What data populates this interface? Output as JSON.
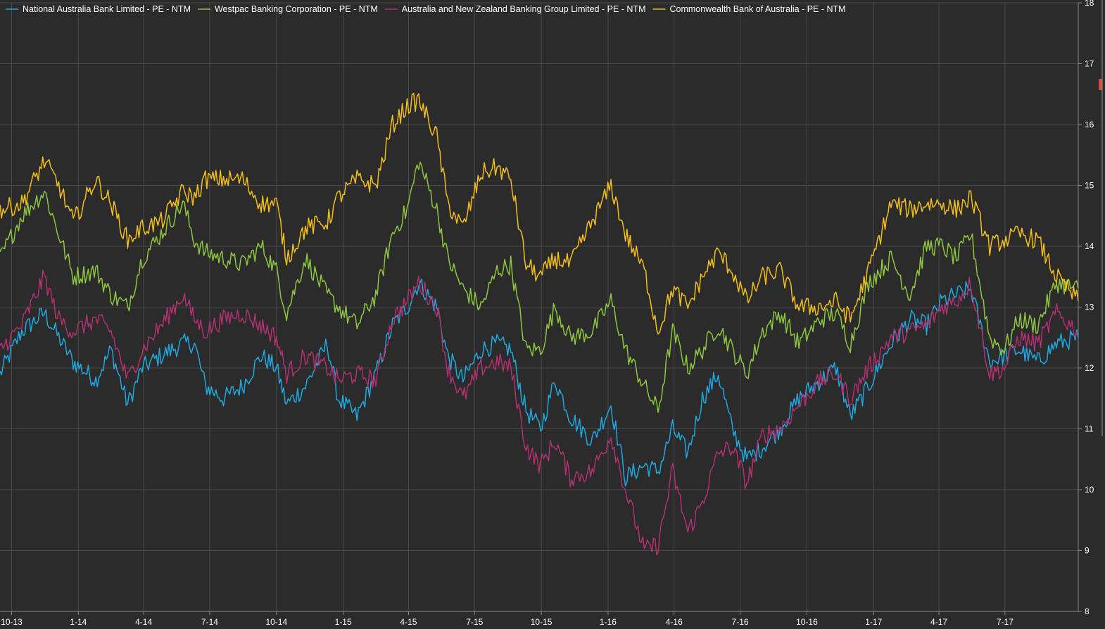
{
  "chart_data": {
    "type": "line",
    "title": "",
    "xlabel": "",
    "ylabel": "",
    "ylim": [
      8,
      18
    ],
    "xlim": [
      "2013-09-15",
      "2017-10-10"
    ],
    "grid": true,
    "legend_position": "top-left",
    "y_axis_side": "right",
    "x_tick_labels": [
      "10-13",
      "1-14",
      "4-14",
      "7-14",
      "10-14",
      "1-15",
      "4-15",
      "7-15",
      "10-15",
      "1-16",
      "4-16",
      "7-16",
      "10-16",
      "1-17",
      "4-17",
      "7-17"
    ],
    "y_tick_labels": [
      "8",
      "9",
      "10",
      "11",
      "12",
      "13",
      "14",
      "15",
      "16",
      "17",
      "18"
    ],
    "series": [
      {
        "name": "National Australia Bank Limited - PE - NTM",
        "color": "#1fa8e0",
        "points": [
          [
            "2013-09-15",
            11.9
          ],
          [
            "2013-10-15",
            12.6
          ],
          [
            "2013-11-15",
            12.9
          ],
          [
            "2013-12-05",
            12.5
          ],
          [
            "2013-12-25",
            12.1
          ],
          [
            "2014-01-25",
            11.8
          ],
          [
            "2014-02-15",
            12.3
          ],
          [
            "2014-03-10",
            11.4
          ],
          [
            "2014-03-30",
            12.0
          ],
          [
            "2014-04-25",
            12.2
          ],
          [
            "2014-05-25",
            12.4
          ],
          [
            "2014-06-10",
            12.4
          ],
          [
            "2014-06-25",
            11.7
          ],
          [
            "2014-07-20",
            11.5
          ],
          [
            "2014-08-15",
            11.7
          ],
          [
            "2014-09-10",
            12.2
          ],
          [
            "2014-10-01",
            12.0
          ],
          [
            "2014-10-15",
            11.4
          ],
          [
            "2014-11-10",
            11.7
          ],
          [
            "2014-12-10",
            12.4
          ],
          [
            "2014-12-25",
            11.5
          ],
          [
            "2015-01-20",
            11.2
          ],
          [
            "2015-02-15",
            11.9
          ],
          [
            "2015-03-10",
            12.7
          ],
          [
            "2015-03-30",
            13.0
          ],
          [
            "2015-04-15",
            13.4
          ],
          [
            "2015-05-10",
            13.0
          ],
          [
            "2015-05-25",
            12.2
          ],
          [
            "2015-06-15",
            11.8
          ],
          [
            "2015-07-10",
            12.3
          ],
          [
            "2015-08-01",
            12.4
          ],
          [
            "2015-08-20",
            12.3
          ],
          [
            "2015-09-10",
            11.3
          ],
          [
            "2015-09-30",
            11.0
          ],
          [
            "2015-10-20",
            11.8
          ],
          [
            "2015-11-10",
            11.2
          ],
          [
            "2015-12-10",
            10.8
          ],
          [
            "2016-01-05",
            11.4
          ],
          [
            "2016-01-25",
            10.2
          ],
          [
            "2016-02-20",
            10.4
          ],
          [
            "2016-03-10",
            10.3
          ],
          [
            "2016-03-30",
            11.0
          ],
          [
            "2016-04-20",
            10.6
          ],
          [
            "2016-05-10",
            11.5
          ],
          [
            "2016-06-01",
            11.9
          ],
          [
            "2016-06-20",
            11.0
          ],
          [
            "2016-07-10",
            10.5
          ],
          [
            "2016-08-01",
            10.7
          ],
          [
            "2016-08-25",
            11.0
          ],
          [
            "2016-09-20",
            11.5
          ],
          [
            "2016-10-20",
            11.8
          ],
          [
            "2016-11-10",
            12.0
          ],
          [
            "2016-11-30",
            11.2
          ],
          [
            "2016-12-25",
            11.7
          ],
          [
            "2017-01-25",
            12.4
          ],
          [
            "2017-02-20",
            12.8
          ],
          [
            "2017-03-15",
            12.7
          ],
          [
            "2017-04-05",
            13.1
          ],
          [
            "2017-04-25",
            13.2
          ],
          [
            "2017-05-15",
            13.3
          ],
          [
            "2017-06-10",
            12.1
          ],
          [
            "2017-06-30",
            12.2
          ],
          [
            "2017-07-20",
            12.3
          ],
          [
            "2017-08-15",
            12.1
          ],
          [
            "2017-09-10",
            12.4
          ],
          [
            "2017-10-10",
            12.5
          ]
        ]
      },
      {
        "name": "Westpac Banking Corporation - PE - NTM",
        "color": "#8dc63f",
        "points": [
          [
            "2013-09-15",
            13.8
          ],
          [
            "2013-10-15",
            14.5
          ],
          [
            "2013-11-15",
            14.9
          ],
          [
            "2013-12-05",
            14.2
          ],
          [
            "2013-12-25",
            13.5
          ],
          [
            "2014-01-25",
            13.6
          ],
          [
            "2014-02-15",
            13.2
          ],
          [
            "2014-03-10",
            13.0
          ],
          [
            "2014-03-30",
            13.8
          ],
          [
            "2014-04-25",
            14.2
          ],
          [
            "2014-05-25",
            14.7
          ],
          [
            "2014-06-10",
            14.1
          ],
          [
            "2014-06-25",
            13.9
          ],
          [
            "2014-07-20",
            13.8
          ],
          [
            "2014-08-15",
            13.7
          ],
          [
            "2014-09-10",
            14.0
          ],
          [
            "2014-10-01",
            13.6
          ],
          [
            "2014-10-15",
            12.9
          ],
          [
            "2014-11-10",
            13.8
          ],
          [
            "2014-12-10",
            13.2
          ],
          [
            "2014-12-25",
            13.0
          ],
          [
            "2015-01-20",
            12.7
          ],
          [
            "2015-02-15",
            13.2
          ],
          [
            "2015-03-10",
            14.2
          ],
          [
            "2015-03-30",
            14.6
          ],
          [
            "2015-04-15",
            15.4
          ],
          [
            "2015-05-10",
            14.6
          ],
          [
            "2015-05-25",
            13.8
          ],
          [
            "2015-06-15",
            13.3
          ],
          [
            "2015-07-10",
            13.0
          ],
          [
            "2015-08-01",
            13.6
          ],
          [
            "2015-08-20",
            13.7
          ],
          [
            "2015-09-10",
            12.3
          ],
          [
            "2015-09-30",
            12.3
          ],
          [
            "2015-10-20",
            13.0
          ],
          [
            "2015-11-10",
            12.5
          ],
          [
            "2015-12-10",
            12.6
          ],
          [
            "2016-01-05",
            13.1
          ],
          [
            "2016-01-25",
            12.3
          ],
          [
            "2016-02-20",
            11.7
          ],
          [
            "2016-03-10",
            11.3
          ],
          [
            "2016-03-30",
            12.6
          ],
          [
            "2016-04-20",
            12.0
          ],
          [
            "2016-05-10",
            12.3
          ],
          [
            "2016-06-01",
            12.7
          ],
          [
            "2016-06-20",
            12.3
          ],
          [
            "2016-07-10",
            11.9
          ],
          [
            "2016-08-01",
            12.6
          ],
          [
            "2016-08-25",
            12.9
          ],
          [
            "2016-09-20",
            12.4
          ],
          [
            "2016-10-20",
            12.8
          ],
          [
            "2016-11-10",
            12.9
          ],
          [
            "2016-11-30",
            12.4
          ],
          [
            "2016-12-25",
            13.4
          ],
          [
            "2017-01-25",
            13.8
          ],
          [
            "2017-02-20",
            13.2
          ],
          [
            "2017-03-15",
            14.0
          ],
          [
            "2017-04-05",
            14.0
          ],
          [
            "2017-04-25",
            13.8
          ],
          [
            "2017-05-15",
            14.2
          ],
          [
            "2017-06-10",
            12.5
          ],
          [
            "2017-06-30",
            12.3
          ],
          [
            "2017-07-20",
            12.8
          ],
          [
            "2017-08-15",
            12.7
          ],
          [
            "2017-09-10",
            13.4
          ],
          [
            "2017-10-10",
            13.3
          ]
        ]
      },
      {
        "name": "Australia and New Zealand Banking Group Limited - PE - NTM",
        "color": "#b03070",
        "points": [
          [
            "2013-09-15",
            12.3
          ],
          [
            "2013-10-15",
            12.7
          ],
          [
            "2013-11-15",
            13.5
          ],
          [
            "2013-12-05",
            12.8
          ],
          [
            "2013-12-25",
            12.6
          ],
          [
            "2014-01-25",
            12.8
          ],
          [
            "2014-02-15",
            12.6
          ],
          [
            "2014-03-10",
            11.8
          ],
          [
            "2014-03-30",
            12.3
          ],
          [
            "2014-04-25",
            12.7
          ],
          [
            "2014-05-25",
            13.2
          ],
          [
            "2014-06-10",
            12.8
          ],
          [
            "2014-06-25",
            12.6
          ],
          [
            "2014-07-20",
            12.8
          ],
          [
            "2014-08-15",
            12.9
          ],
          [
            "2014-09-10",
            12.7
          ],
          [
            "2014-10-01",
            12.5
          ],
          [
            "2014-10-15",
            11.9
          ],
          [
            "2014-11-10",
            12.2
          ],
          [
            "2014-12-10",
            12.0
          ],
          [
            "2014-12-25",
            11.8
          ],
          [
            "2015-01-20",
            11.9
          ],
          [
            "2015-02-15",
            11.8
          ],
          [
            "2015-03-10",
            12.8
          ],
          [
            "2015-03-30",
            13.1
          ],
          [
            "2015-04-15",
            13.4
          ],
          [
            "2015-05-10",
            13.0
          ],
          [
            "2015-05-25",
            12.0
          ],
          [
            "2015-06-15",
            11.5
          ],
          [
            "2015-07-10",
            12.0
          ],
          [
            "2015-08-01",
            12.1
          ],
          [
            "2015-08-20",
            12.0
          ],
          [
            "2015-09-10",
            10.7
          ],
          [
            "2015-09-30",
            10.4
          ],
          [
            "2015-10-20",
            10.8
          ],
          [
            "2015-11-10",
            10.2
          ],
          [
            "2015-12-10",
            10.3
          ],
          [
            "2016-01-05",
            10.9
          ],
          [
            "2016-01-25",
            10.0
          ],
          [
            "2016-02-20",
            9.0
          ],
          [
            "2016-03-10",
            9.1
          ],
          [
            "2016-03-30",
            10.3
          ],
          [
            "2016-04-20",
            9.3
          ],
          [
            "2016-05-10",
            9.8
          ],
          [
            "2016-06-01",
            10.6
          ],
          [
            "2016-06-20",
            10.7
          ],
          [
            "2016-07-10",
            10.1
          ],
          [
            "2016-08-01",
            10.9
          ],
          [
            "2016-08-25",
            11.0
          ],
          [
            "2016-09-20",
            11.4
          ],
          [
            "2016-10-20",
            11.8
          ],
          [
            "2016-11-10",
            11.9
          ],
          [
            "2016-11-30",
            11.5
          ],
          [
            "2016-12-25",
            12.0
          ],
          [
            "2017-01-25",
            12.5
          ],
          [
            "2017-02-20",
            12.6
          ],
          [
            "2017-03-15",
            12.7
          ],
          [
            "2017-04-05",
            13.0
          ],
          [
            "2017-04-25",
            13.1
          ],
          [
            "2017-05-15",
            13.4
          ],
          [
            "2017-06-10",
            11.9
          ],
          [
            "2017-06-30",
            12.0
          ],
          [
            "2017-07-20",
            12.5
          ],
          [
            "2017-08-15",
            12.4
          ],
          [
            "2017-09-10",
            12.9
          ],
          [
            "2017-10-10",
            12.6
          ]
        ]
      },
      {
        "name": "Commonwealth Bank of Australia - PE - NTM",
        "color": "#f2bf1a",
        "points": [
          [
            "2013-09-15",
            14.6
          ],
          [
            "2013-10-15",
            14.7
          ],
          [
            "2013-11-15",
            15.4
          ],
          [
            "2013-12-05",
            15.0
          ],
          [
            "2013-12-25",
            14.4
          ],
          [
            "2014-01-25",
            15.1
          ],
          [
            "2014-02-15",
            14.7
          ],
          [
            "2014-03-10",
            14.1
          ],
          [
            "2014-03-30",
            14.3
          ],
          [
            "2014-04-25",
            14.4
          ],
          [
            "2014-05-25",
            14.9
          ],
          [
            "2014-06-10",
            14.8
          ],
          [
            "2014-06-25",
            15.1
          ],
          [
            "2014-07-20",
            15.1
          ],
          [
            "2014-08-15",
            15.1
          ],
          [
            "2014-09-10",
            14.7
          ],
          [
            "2014-10-01",
            14.7
          ],
          [
            "2014-10-15",
            13.8
          ],
          [
            "2014-11-10",
            14.3
          ],
          [
            "2014-12-10",
            14.4
          ],
          [
            "2014-12-25",
            14.8
          ],
          [
            "2015-01-20",
            15.1
          ],
          [
            "2015-02-15",
            15.0
          ],
          [
            "2015-03-10",
            16.0
          ],
          [
            "2015-03-30",
            16.3
          ],
          [
            "2015-04-15",
            16.4
          ],
          [
            "2015-05-10",
            15.8
          ],
          [
            "2015-05-25",
            14.7
          ],
          [
            "2015-06-15",
            14.3
          ],
          [
            "2015-07-10",
            15.2
          ],
          [
            "2015-08-01",
            15.3
          ],
          [
            "2015-08-20",
            15.1
          ],
          [
            "2015-09-10",
            13.7
          ],
          [
            "2015-09-30",
            13.5
          ],
          [
            "2015-10-20",
            13.8
          ],
          [
            "2015-11-10",
            13.7
          ],
          [
            "2015-12-10",
            14.4
          ],
          [
            "2016-01-05",
            15.0
          ],
          [
            "2016-01-25",
            14.2
          ],
          [
            "2016-02-20",
            13.6
          ],
          [
            "2016-03-10",
            12.6
          ],
          [
            "2016-03-30",
            13.3
          ],
          [
            "2016-04-20",
            13.0
          ],
          [
            "2016-05-10",
            13.5
          ],
          [
            "2016-06-01",
            13.9
          ],
          [
            "2016-06-20",
            13.6
          ],
          [
            "2016-07-10",
            13.1
          ],
          [
            "2016-08-01",
            13.5
          ],
          [
            "2016-08-25",
            13.6
          ],
          [
            "2016-09-20",
            13.0
          ],
          [
            "2016-10-20",
            13.0
          ],
          [
            "2016-11-10",
            13.1
          ],
          [
            "2016-11-30",
            12.8
          ],
          [
            "2016-12-25",
            13.6
          ],
          [
            "2017-01-25",
            14.7
          ],
          [
            "2017-02-20",
            14.6
          ],
          [
            "2017-03-15",
            14.7
          ],
          [
            "2017-04-05",
            14.7
          ],
          [
            "2017-04-25",
            14.6
          ],
          [
            "2017-05-15",
            14.8
          ],
          [
            "2017-06-10",
            14.0
          ],
          [
            "2017-06-30",
            14.1
          ],
          [
            "2017-07-20",
            14.2
          ],
          [
            "2017-08-15",
            14.1
          ],
          [
            "2017-09-10",
            13.5
          ],
          [
            "2017-10-10",
            13.1
          ]
        ]
      }
    ]
  }
}
